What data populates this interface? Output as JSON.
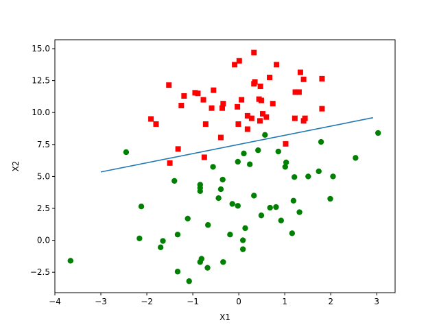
{
  "chart_data": {
    "type": "scatter",
    "xlabel": "X1",
    "ylabel": "X2",
    "xlim": [
      -4.0,
      3.4
    ],
    "ylim": [
      -4.1,
      15.7
    ],
    "xticks": [
      -4,
      -3,
      -2,
      -1,
      0,
      1,
      2,
      3
    ],
    "xtick_labels": [
      "−4",
      "−3",
      "−2",
      "−1",
      "0",
      "1",
      "2",
      "3"
    ],
    "yticks": [
      -2.5,
      0.0,
      2.5,
      5.0,
      7.5,
      10.0,
      12.5,
      15.0
    ],
    "ytick_labels": [
      "−2.5",
      "0.0",
      "2.5",
      "5.0",
      "7.5",
      "10.0",
      "12.5",
      "15.0"
    ],
    "grid": false,
    "series": [
      {
        "marker": "square",
        "color": "#ff0000",
        "points": [
          [
            0.33,
            14.7
          ],
          [
            0.01,
            14.05
          ],
          [
            -0.09,
            13.75
          ],
          [
            0.82,
            13.75
          ],
          [
            1.34,
            13.15
          ],
          [
            0.67,
            12.75
          ],
          [
            1.81,
            12.65
          ],
          [
            1.41,
            12.6
          ],
          [
            0.35,
            12.4
          ],
          [
            0.33,
            12.25
          ],
          [
            -1.52,
            12.15
          ],
          [
            0.47,
            12.05
          ],
          [
            -0.55,
            11.75
          ],
          [
            -0.95,
            11.55
          ],
          [
            -0.89,
            11.5
          ],
          [
            1.23,
            11.6
          ],
          [
            1.31,
            11.6
          ],
          [
            -1.19,
            11.3
          ],
          [
            -0.77,
            11.0
          ],
          [
            0.06,
            11.0
          ],
          [
            0.44,
            11.05
          ],
          [
            0.49,
            10.95
          ],
          [
            0.74,
            10.7
          ],
          [
            -0.34,
            10.7
          ],
          [
            -0.36,
            10.35
          ],
          [
            -0.59,
            10.35
          ],
          [
            -0.03,
            10.45
          ],
          [
            -1.25,
            10.55
          ],
          [
            1.81,
            10.3
          ],
          [
            0.52,
            9.9
          ],
          [
            0.6,
            9.65
          ],
          [
            0.19,
            9.75
          ],
          [
            0.28,
            9.55
          ],
          [
            1.22,
            9.55
          ],
          [
            1.44,
            9.55
          ],
          [
            1.41,
            9.35
          ],
          [
            0.46,
            9.35
          ],
          [
            -1.91,
            9.5
          ],
          [
            -0.01,
            9.1
          ],
          [
            -1.8,
            9.1
          ],
          [
            -0.72,
            9.1
          ],
          [
            0.19,
            8.7
          ],
          [
            -0.39,
            8.05
          ],
          [
            -1.32,
            7.15
          ],
          [
            1.02,
            7.55
          ],
          [
            -0.75,
            6.5
          ],
          [
            -1.5,
            6.05
          ]
        ]
      },
      {
        "marker": "circle",
        "color": "#008000",
        "points": [
          [
            3.03,
            8.4
          ],
          [
            0.57,
            8.25
          ],
          [
            1.79,
            7.7
          ],
          [
            0.42,
            7.05
          ],
          [
            -2.45,
            6.9
          ],
          [
            0.86,
            6.95
          ],
          [
            0.11,
            6.8
          ],
          [
            2.54,
            6.45
          ],
          [
            -0.02,
            6.15
          ],
          [
            1.03,
            6.1
          ],
          [
            0.24,
            5.95
          ],
          [
            -0.56,
            5.75
          ],
          [
            1.01,
            5.75
          ],
          [
            1.74,
            5.4
          ],
          [
            2.05,
            5.0
          ],
          [
            1.21,
            4.95
          ],
          [
            1.51,
            5.0
          ],
          [
            -0.35,
            4.75
          ],
          [
            -1.4,
            4.65
          ],
          [
            -0.84,
            4.35
          ],
          [
            -0.84,
            4.1
          ],
          [
            -0.39,
            4.0
          ],
          [
            -0.84,
            3.85
          ],
          [
            0.33,
            3.5
          ],
          [
            -0.44,
            3.3
          ],
          [
            1.99,
            3.25
          ],
          [
            1.19,
            3.1
          ],
          [
            -0.14,
            2.85
          ],
          [
            -0.02,
            2.7
          ],
          [
            -2.12,
            2.65
          ],
          [
            0.81,
            2.6
          ],
          [
            0.68,
            2.55
          ],
          [
            1.32,
            2.2
          ],
          [
            0.49,
            1.95
          ],
          [
            -1.11,
            1.7
          ],
          [
            0.92,
            1.55
          ],
          [
            -0.67,
            1.2
          ],
          [
            0.14,
            0.95
          ],
          [
            1.16,
            0.55
          ],
          [
            -1.33,
            0.45
          ],
          [
            -0.19,
            0.45
          ],
          [
            -2.16,
            0.15
          ],
          [
            0.09,
            0.0
          ],
          [
            -1.65,
            -0.05
          ],
          [
            -1.7,
            -0.55
          ],
          [
            0.09,
            -0.7
          ],
          [
            -0.81,
            -1.45
          ],
          [
            -3.66,
            -1.6
          ],
          [
            -0.84,
            -1.7
          ],
          [
            -0.34,
            -1.7
          ],
          [
            -0.68,
            -2.15
          ],
          [
            -1.33,
            -2.45
          ],
          [
            -1.08,
            -3.2
          ]
        ]
      }
    ],
    "line": {
      "color": "#1f77b4",
      "x": [
        -3.0,
        2.92
      ],
      "y": [
        5.35,
        9.6
      ]
    }
  }
}
